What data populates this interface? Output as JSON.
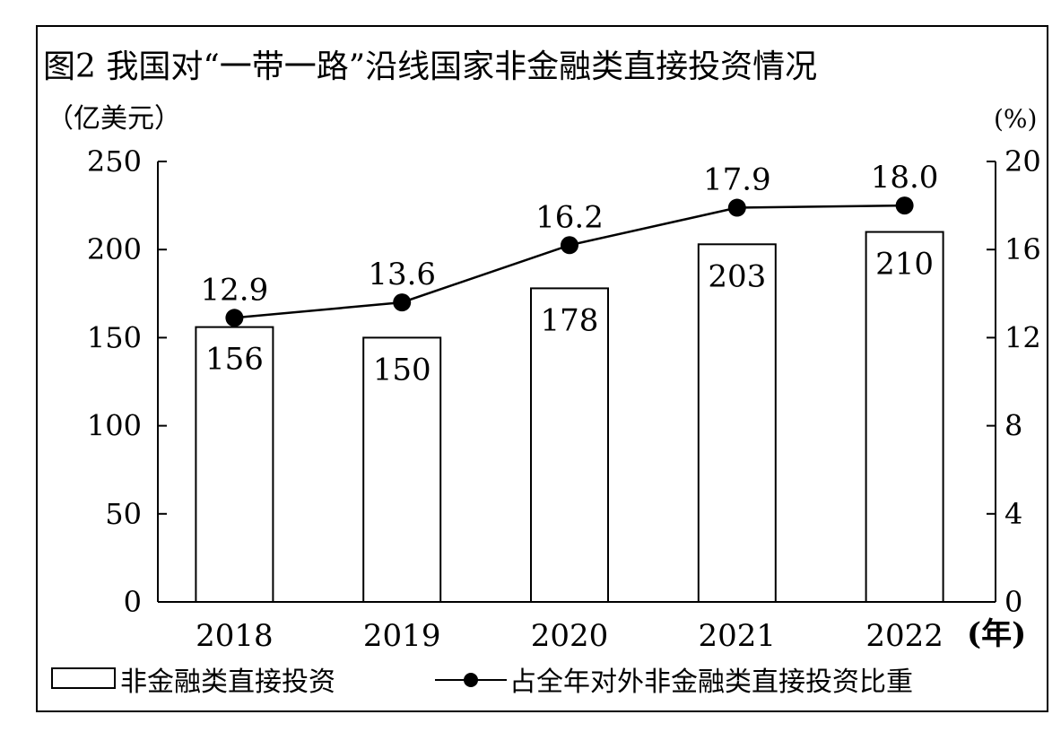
{
  "chart_data": {
    "type": "bar+line",
    "title": "图2 我国对“一带一路”沿线国家非金融类直接投资情况",
    "left_unit": "（亿美元）",
    "right_unit": "(%)",
    "x_unit": "(年)",
    "categories": [
      "2018",
      "2019",
      "2020",
      "2021",
      "2022"
    ],
    "bars": {
      "name": "非金融类直接投资",
      "values": [
        156,
        150,
        178,
        203,
        210
      ],
      "labels": [
        "156",
        "150",
        "178",
        "203",
        "210"
      ]
    },
    "line": {
      "name": "占全年对外非金融类直接投资比重",
      "values": [
        12.9,
        13.6,
        16.2,
        17.9,
        18.0
      ],
      "labels": [
        "12.9",
        "13.6",
        "16.2",
        "17.9",
        "18.0"
      ]
    },
    "y_left": {
      "range": [
        0,
        250
      ],
      "ticks": [
        "0",
        "50",
        "100",
        "150",
        "200",
        "250"
      ]
    },
    "y_right": {
      "range": [
        0,
        20
      ],
      "ticks": [
        "0",
        "4",
        "8",
        "12",
        "16",
        "20"
      ]
    },
    "legend_position": "bottom",
    "grid": false,
    "colors": {
      "ink": "#000000",
      "bar_fill": "#ffffff"
    }
  }
}
